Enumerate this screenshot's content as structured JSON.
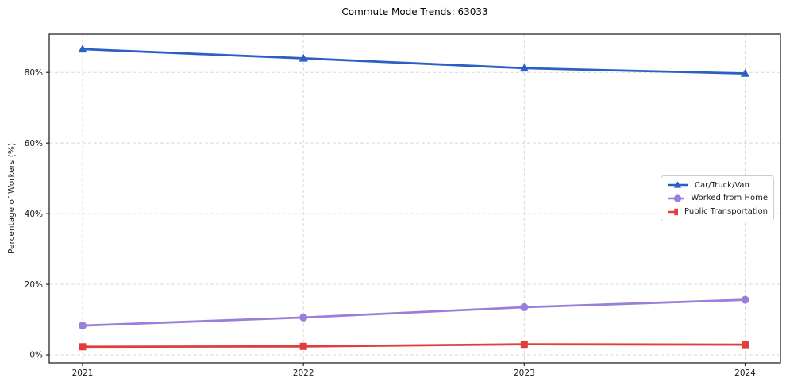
{
  "title": "Commute Mode Trends: 63033",
  "chart_data": {
    "type": "line",
    "title": "Commute Mode Trends: 63033",
    "xlabel": "",
    "ylabel": "Percentage of Workers (%)",
    "categories": [
      "2021",
      "2022",
      "2023",
      "2024"
    ],
    "series": [
      {
        "name": "Car/Truck/Van",
        "marker": "triangle",
        "color": "#2a5fc4",
        "values": [
          86.6,
          84.0,
          81.2,
          79.7
        ]
      },
      {
        "name": "Worked from Home",
        "marker": "circle",
        "color": "#9b7ed9",
        "values": [
          8.3,
          10.6,
          13.5,
          15.6
        ]
      },
      {
        "name": "Public Transportation",
        "marker": "square",
        "color": "#e03e3e",
        "values": [
          2.3,
          2.4,
          3.0,
          2.9
        ]
      }
    ],
    "ytick_labels": [
      "0%",
      "20%",
      "40%",
      "60%",
      "80%"
    ],
    "ytick_values": [
      0,
      20,
      40,
      60,
      80
    ],
    "ylim": [
      -2.3,
      90.9
    ],
    "grid": "dashed",
    "grid_color": "#d8d8d8",
    "spine_color": "#262626",
    "legend_position": "center-right"
  }
}
